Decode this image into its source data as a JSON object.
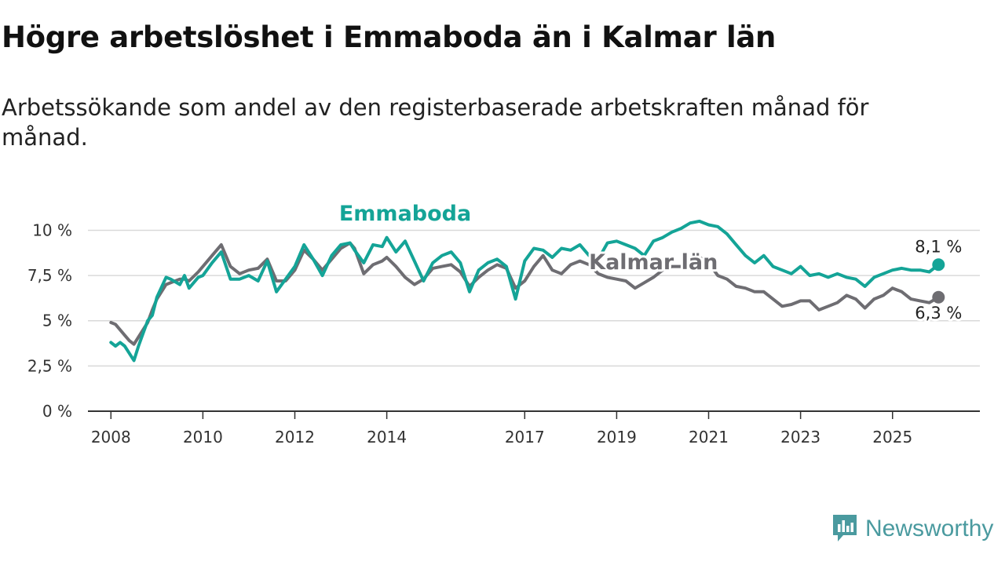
{
  "title": "Högre arbetslöshet i Emmaboda än i Kalmar län",
  "subtitle": "Arbetssökande som andel av den registerbaserade arbetskraften månad för månad.",
  "brand": {
    "name": "Newsworthy"
  },
  "colors": {
    "emmaboda": "#14a497",
    "kalmar": "#6e6d72",
    "grid": "#d9d9d9",
    "axis": "#333333",
    "brand": "#4a9a9f"
  },
  "chart_data": {
    "type": "line",
    "title": "Högre arbetslöshet i Emmaboda än i Kalmar län",
    "xlabel": "",
    "ylabel": "",
    "ylim": [
      0,
      10.8
    ],
    "xlim": [
      2007.5,
      2026.9
    ],
    "y_ticks": [
      0,
      2.5,
      5,
      7.5,
      10
    ],
    "y_tick_labels": [
      "0 %",
      "2,5 %",
      "5 %",
      "7,5 %",
      "10 %"
    ],
    "x_ticks": [
      2008,
      2010,
      2012,
      2014,
      2017,
      2019,
      2021,
      2023,
      2025
    ],
    "x_tick_labels": [
      "2008",
      "2010",
      "2012",
      "2014",
      "2017",
      "2019",
      "2021",
      "2023",
      "2025"
    ],
    "grid": true,
    "series": [
      {
        "name": "Emmaboda",
        "color": "#14a497",
        "end_label": "8,1 %",
        "x": [
          2008.0,
          2008.1,
          2008.2,
          2008.3,
          2008.4,
          2008.5,
          2008.6,
          2008.8,
          2008.9,
          2009.0,
          2009.2,
          2009.3,
          2009.5,
          2009.6,
          2009.7,
          2009.9,
          2010.0,
          2010.2,
          2010.4,
          2010.6,
          2010.8,
          2011.0,
          2011.2,
          2011.4,
          2011.6,
          2011.8,
          2012.0,
          2012.2,
          2012.4,
          2012.6,
          2012.8,
          2013.0,
          2013.2,
          2013.3,
          2013.5,
          2013.7,
          2013.9,
          2014.0,
          2014.2,
          2014.4,
          2014.6,
          2014.8,
          2015.0,
          2015.2,
          2015.4,
          2015.6,
          2015.8,
          2016.0,
          2016.2,
          2016.4,
          2016.6,
          2016.8,
          2017.0,
          2017.2,
          2017.4,
          2017.6,
          2017.8,
          2018.0,
          2018.2,
          2018.4,
          2018.6,
          2018.8,
          2019.0,
          2019.2,
          2019.4,
          2019.6,
          2019.8,
          2020.0,
          2020.2,
          2020.4,
          2020.6,
          2020.8,
          2021.0,
          2021.2,
          2021.4,
          2021.6,
          2021.8,
          2022.0,
          2022.2,
          2022.4,
          2022.6,
          2022.8,
          2023.0,
          2023.2,
          2023.4,
          2023.6,
          2023.8,
          2024.0,
          2024.2,
          2024.4,
          2024.6,
          2024.8,
          2025.0,
          2025.2,
          2025.4,
          2025.6,
          2025.8,
          2026.0
        ],
        "values": [
          3.8,
          3.6,
          3.8,
          3.6,
          3.2,
          2.8,
          3.6,
          5.0,
          5.3,
          6.3,
          7.4,
          7.3,
          7.0,
          7.5,
          6.8,
          7.4,
          7.5,
          8.2,
          8.8,
          7.3,
          7.3,
          7.5,
          7.2,
          8.3,
          6.6,
          7.3,
          8.0,
          9.2,
          8.4,
          7.5,
          8.6,
          9.2,
          9.3,
          8.9,
          8.2,
          9.2,
          9.1,
          9.6,
          8.8,
          9.4,
          8.3,
          7.2,
          8.2,
          8.6,
          8.8,
          8.2,
          6.6,
          7.8,
          8.2,
          8.4,
          8.0,
          6.2,
          8.3,
          9.0,
          8.9,
          8.5,
          9.0,
          8.9,
          9.2,
          8.6,
          8.4,
          9.3,
          9.4,
          9.2,
          9.0,
          8.6,
          9.4,
          9.6,
          9.9,
          10.1,
          10.4,
          10.5,
          10.3,
          10.2,
          9.8,
          9.2,
          8.6,
          8.2,
          8.6,
          8.0,
          7.8,
          7.6,
          8.0,
          7.5,
          7.6,
          7.4,
          7.6,
          7.4,
          7.3,
          6.9,
          7.4,
          7.6,
          7.8,
          7.9,
          7.8,
          7.8,
          7.7,
          8.1
        ]
      },
      {
        "name": "Kalmar län",
        "color": "#6e6d72",
        "end_label": "6,3 %",
        "x": [
          2008.0,
          2008.1,
          2008.2,
          2008.3,
          2008.4,
          2008.5,
          2008.6,
          2008.8,
          2008.9,
          2009.0,
          2009.2,
          2009.3,
          2009.5,
          2009.6,
          2009.7,
          2009.9,
          2010.0,
          2010.2,
          2010.4,
          2010.6,
          2010.8,
          2011.0,
          2011.2,
          2011.4,
          2011.6,
          2011.8,
          2012.0,
          2012.2,
          2012.4,
          2012.6,
          2012.8,
          2013.0,
          2013.2,
          2013.3,
          2013.5,
          2013.7,
          2013.9,
          2014.0,
          2014.2,
          2014.4,
          2014.6,
          2014.8,
          2015.0,
          2015.2,
          2015.4,
          2015.6,
          2015.8,
          2016.0,
          2016.2,
          2016.4,
          2016.6,
          2016.8,
          2017.0,
          2017.2,
          2017.4,
          2017.6,
          2017.8,
          2018.0,
          2018.2,
          2018.4,
          2018.6,
          2018.8,
          2019.0,
          2019.2,
          2019.4,
          2019.6,
          2019.8,
          2020.0,
          2020.2,
          2020.4,
          2020.6,
          2020.8,
          2021.0,
          2021.2,
          2021.4,
          2021.6,
          2021.8,
          2022.0,
          2022.2,
          2022.4,
          2022.6,
          2022.8,
          2023.0,
          2023.2,
          2023.4,
          2023.6,
          2023.8,
          2024.0,
          2024.2,
          2024.4,
          2024.6,
          2024.8,
          2025.0,
          2025.2,
          2025.4,
          2025.6,
          2025.8,
          2026.0
        ],
        "values": [
          4.9,
          4.8,
          4.5,
          4.2,
          3.9,
          3.7,
          4.1,
          4.9,
          5.6,
          6.2,
          7.0,
          7.1,
          7.3,
          7.3,
          7.2,
          7.7,
          8.0,
          8.6,
          9.2,
          8.0,
          7.6,
          7.8,
          7.9,
          8.4,
          7.2,
          7.2,
          7.8,
          8.9,
          8.4,
          7.8,
          8.4,
          9.0,
          9.3,
          9.0,
          7.6,
          8.1,
          8.3,
          8.5,
          8.0,
          7.4,
          7.0,
          7.3,
          7.9,
          8.0,
          8.1,
          7.7,
          6.9,
          7.4,
          7.8,
          8.1,
          7.9,
          6.8,
          7.2,
          8.0,
          8.6,
          7.8,
          7.6,
          8.1,
          8.3,
          8.1,
          7.6,
          7.4,
          7.3,
          7.2,
          6.8,
          7.1,
          7.4,
          7.8,
          8.0,
          8.0,
          8.3,
          8.5,
          8.2,
          7.5,
          7.3,
          6.9,
          6.8,
          6.6,
          6.6,
          6.2,
          5.8,
          5.9,
          6.1,
          6.1,
          5.6,
          5.8,
          6.0,
          6.4,
          6.2,
          5.7,
          6.2,
          6.4,
          6.8,
          6.6,
          6.2,
          6.1,
          6.0,
          6.3
        ]
      }
    ]
  }
}
